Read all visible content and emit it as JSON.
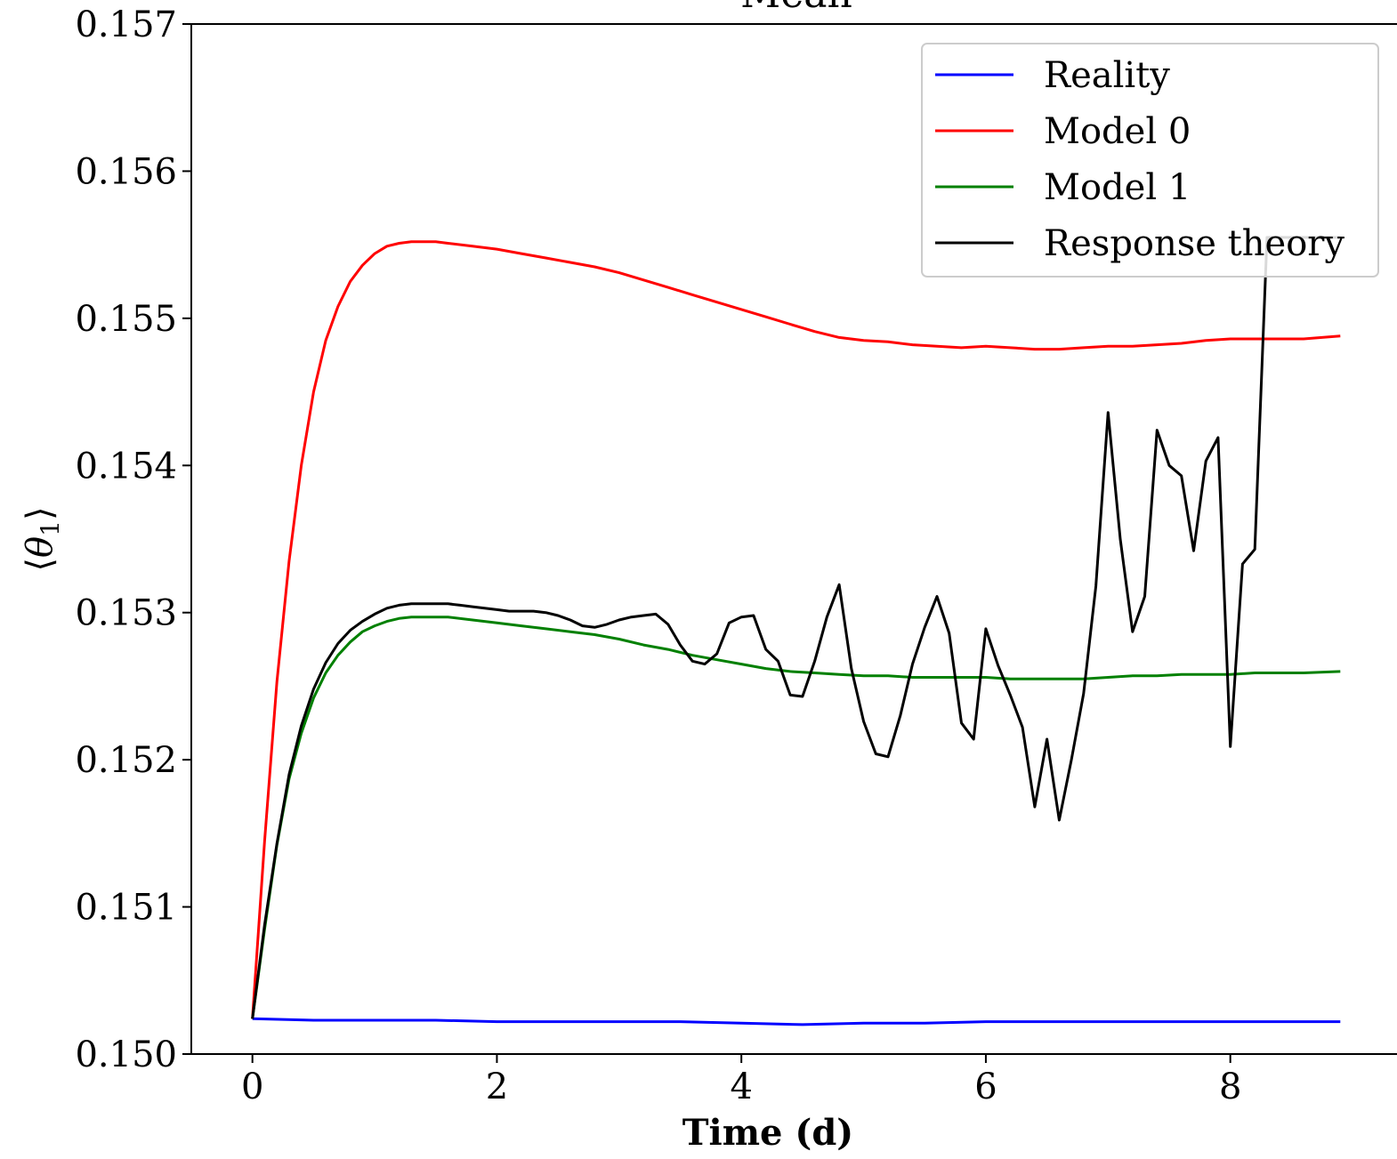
{
  "chart_data": {
    "type": "line",
    "title": "Mean",
    "xlabel": "Time (d)",
    "ylabel_symbol": "θ",
    "ylabel_subscript": "1",
    "xlim": [
      -0.5,
      9.4
    ],
    "ylim": [
      0.15,
      0.157
    ],
    "xticks": [
      0,
      2,
      4,
      6,
      8
    ],
    "yticks": [
      0.15,
      0.151,
      0.152,
      0.153,
      0.154,
      0.155,
      0.156,
      0.157
    ],
    "xtick_labels": [
      "0",
      "2",
      "4",
      "6",
      "8"
    ],
    "ytick_labels": [
      "0.150",
      "0.151",
      "0.152",
      "0.153",
      "0.154",
      "0.155",
      "0.156",
      "0.157"
    ],
    "legend_position": "top-right",
    "series": [
      {
        "name": "Reality",
        "color": "#0000ff",
        "x": [
          0,
          0.5,
          1,
          1.5,
          2,
          2.5,
          3,
          3.5,
          4,
          4.5,
          5,
          5.5,
          6,
          6.5,
          7,
          7.5,
          8,
          8.5,
          8.9
        ],
        "y": [
          0.15024,
          0.15023,
          0.15023,
          0.15023,
          0.15022,
          0.15022,
          0.15022,
          0.15022,
          0.15021,
          0.1502,
          0.15021,
          0.15021,
          0.15022,
          0.15022,
          0.15022,
          0.15022,
          0.15022,
          0.15022,
          0.15022
        ]
      },
      {
        "name": "Model 0",
        "color": "#ff0000",
        "x": [
          0,
          0.1,
          0.2,
          0.3,
          0.4,
          0.5,
          0.6,
          0.7,
          0.8,
          0.9,
          1.0,
          1.1,
          1.2,
          1.3,
          1.4,
          1.5,
          1.6,
          1.8,
          2.0,
          2.2,
          2.4,
          2.6,
          2.8,
          3.0,
          3.2,
          3.4,
          3.6,
          3.8,
          4.0,
          4.2,
          4.4,
          4.6,
          4.8,
          5.0,
          5.2,
          5.4,
          5.6,
          5.8,
          6.0,
          6.2,
          6.4,
          6.6,
          6.8,
          7.0,
          7.2,
          7.4,
          7.6,
          7.8,
          8.0,
          8.2,
          8.4,
          8.6,
          8.9
        ],
        "y": [
          0.15024,
          0.15145,
          0.15253,
          0.15335,
          0.154,
          0.1545,
          0.15485,
          0.15508,
          0.15525,
          0.15536,
          0.15544,
          0.15549,
          0.15551,
          0.15552,
          0.15552,
          0.15552,
          0.15551,
          0.15549,
          0.15547,
          0.15544,
          0.15541,
          0.15538,
          0.15535,
          0.15531,
          0.15526,
          0.15521,
          0.15516,
          0.15511,
          0.15506,
          0.15501,
          0.15496,
          0.15491,
          0.15487,
          0.15485,
          0.15484,
          0.15482,
          0.15481,
          0.1548,
          0.15481,
          0.1548,
          0.15479,
          0.15479,
          0.1548,
          0.15481,
          0.15481,
          0.15482,
          0.15483,
          0.15485,
          0.15486,
          0.15486,
          0.15486,
          0.15486,
          0.15488
        ]
      },
      {
        "name": "Model 1",
        "color": "#008000",
        "x": [
          0,
          0.1,
          0.2,
          0.3,
          0.4,
          0.5,
          0.6,
          0.7,
          0.8,
          0.9,
          1.0,
          1.1,
          1.2,
          1.3,
          1.4,
          1.5,
          1.6,
          1.8,
          2.0,
          2.2,
          2.4,
          2.6,
          2.8,
          3.0,
          3.2,
          3.4,
          3.6,
          3.8,
          4.0,
          4.2,
          4.4,
          4.6,
          4.8,
          5.0,
          5.2,
          5.4,
          5.6,
          5.8,
          6.0,
          6.2,
          6.4,
          6.6,
          6.8,
          7.0,
          7.2,
          7.4,
          7.6,
          7.8,
          8.0,
          8.2,
          8.4,
          8.6,
          8.9
        ],
        "y": [
          0.15024,
          0.15085,
          0.15142,
          0.15187,
          0.15218,
          0.15242,
          0.15259,
          0.15271,
          0.1528,
          0.15287,
          0.15291,
          0.15294,
          0.15296,
          0.15297,
          0.15297,
          0.15297,
          0.15297,
          0.15295,
          0.15293,
          0.15291,
          0.15289,
          0.15287,
          0.15285,
          0.15282,
          0.15278,
          0.15275,
          0.15271,
          0.15268,
          0.15265,
          0.15262,
          0.1526,
          0.15259,
          0.15258,
          0.15257,
          0.15257,
          0.15256,
          0.15256,
          0.15256,
          0.15256,
          0.15255,
          0.15255,
          0.15255,
          0.15255,
          0.15256,
          0.15257,
          0.15257,
          0.15258,
          0.15258,
          0.15258,
          0.15259,
          0.15259,
          0.15259,
          0.1526
        ]
      },
      {
        "name": "Response theory",
        "color": "#000000",
        "x": [
          0,
          0.1,
          0.2,
          0.3,
          0.4,
          0.5,
          0.6,
          0.7,
          0.8,
          0.9,
          1.0,
          1.1,
          1.2,
          1.3,
          1.4,
          1.5,
          1.6,
          1.7,
          1.8,
          1.9,
          2.0,
          2.1,
          2.2,
          2.3,
          2.4,
          2.5,
          2.6,
          2.7,
          2.8,
          2.9,
          3.0,
          3.1,
          3.2,
          3.3,
          3.4,
          3.5,
          3.6,
          3.7,
          3.8,
          3.9,
          4.0,
          4.1,
          4.2,
          4.3,
          4.4,
          4.5,
          4.6,
          4.7,
          4.8,
          4.9,
          5.0,
          5.1,
          5.2,
          5.3,
          5.4,
          5.5,
          5.6,
          5.7,
          5.8,
          5.9,
          6.0,
          6.1,
          6.2,
          6.3,
          6.4,
          6.5,
          6.6,
          6.7,
          6.8,
          6.9,
          7.0,
          7.1,
          7.2,
          7.3,
          7.4,
          7.5,
          7.6,
          7.7,
          7.8,
          7.9,
          8.0,
          8.1,
          8.2,
          8.3,
          8.4,
          8.5,
          8.6,
          8.7,
          8.8,
          8.9
        ],
        "y": [
          0.15024,
          0.15088,
          0.15143,
          0.1519,
          0.15223,
          0.15248,
          0.15266,
          0.15279,
          0.15288,
          0.15294,
          0.15299,
          0.15303,
          0.15305,
          0.15306,
          0.15306,
          0.15306,
          0.15306,
          0.15305,
          0.15304,
          0.15303,
          0.15302,
          0.15301,
          0.15301,
          0.15301,
          0.153,
          0.15298,
          0.15295,
          0.15291,
          0.1529,
          0.15292,
          0.15295,
          0.15297,
          0.15298,
          0.15299,
          0.15292,
          0.15278,
          0.15267,
          0.15265,
          0.15272,
          0.15293,
          0.15297,
          0.15298,
          0.15275,
          0.15267,
          0.15244,
          0.15243,
          0.15267,
          0.15297,
          0.15319,
          0.15262,
          0.15226,
          0.15204,
          0.15202,
          0.1523,
          0.15265,
          0.1529,
          0.15311,
          0.15286,
          0.15225,
          0.15214,
          0.15289,
          0.15264,
          0.15244,
          0.15222,
          0.15168,
          0.15214,
          0.15159,
          0.152,
          0.15245,
          0.15318,
          0.15436,
          0.1535,
          0.15287,
          0.15311,
          0.15424,
          0.154,
          0.15393,
          0.15342,
          0.15403,
          0.15419,
          0.15209,
          0.15333,
          0.15343,
          0.15555,
          0.15555,
          0.15555,
          0.15555,
          0.15555,
          0.15555,
          0.15555
        ]
      }
    ]
  }
}
